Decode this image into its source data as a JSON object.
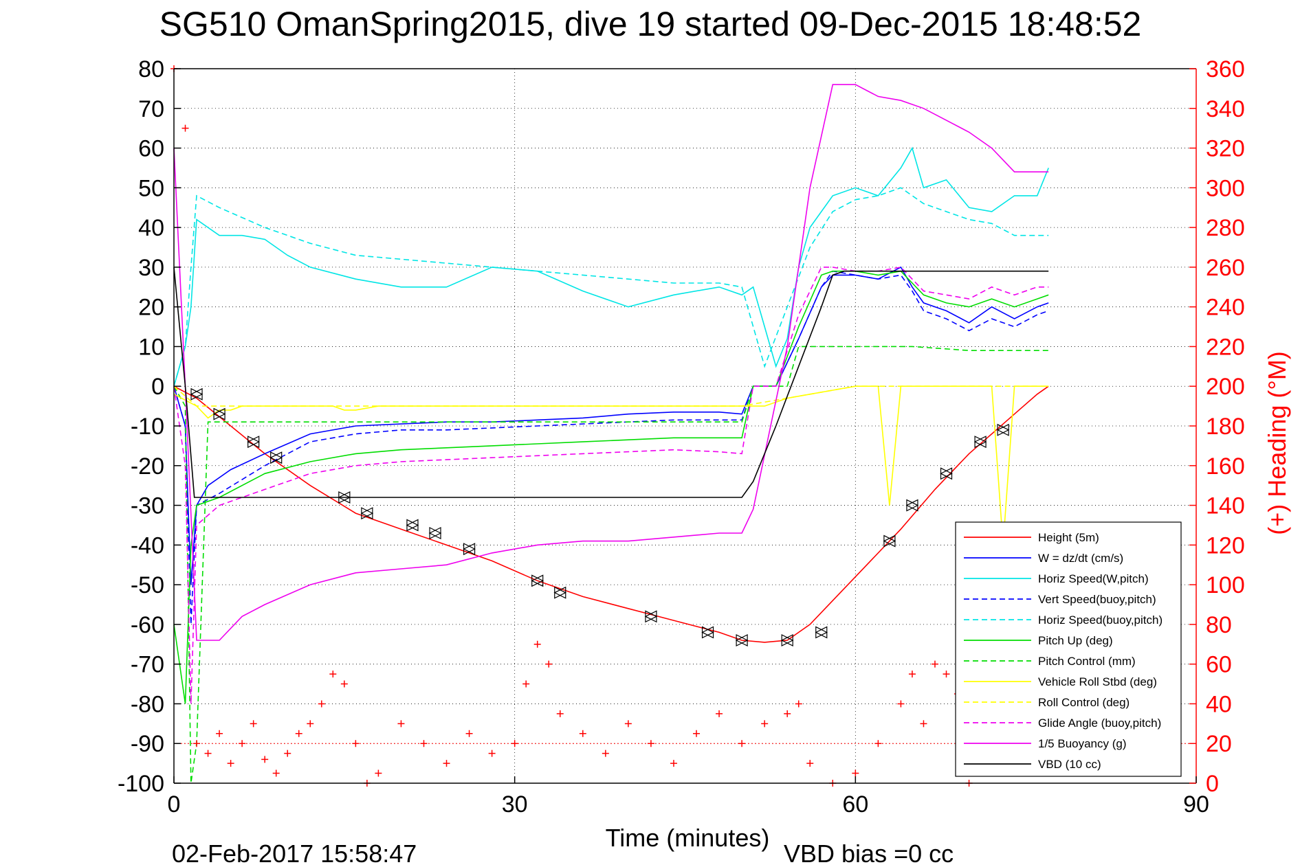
{
  "chart_data": {
    "type": "line",
    "title": "SG510 OmanSpring2015, dive 19 started 09-Dec-2015 18:48:52",
    "xlabel": "Time (minutes)",
    "ylabel": "",
    "y2label": "(+) Heading (°M)",
    "xlim": [
      0,
      90
    ],
    "ylim": [
      -100,
      80
    ],
    "y2lim": [
      0,
      360
    ],
    "xticks": [
      "0",
      "30",
      "60",
      "90"
    ],
    "yticks": [
      "80",
      "70",
      "60",
      "50",
      "40",
      "30",
      "20",
      "10",
      "0",
      "-10",
      "-20",
      "-30",
      "-40",
      "-50",
      "-60",
      "-70",
      "-80",
      "-90",
      "-100"
    ],
    "y2ticks": [
      "360",
      "340",
      "320",
      "300",
      "280",
      "260",
      "240",
      "220",
      "200",
      "180",
      "160",
      "140",
      "120",
      "100",
      "80",
      "60",
      "40",
      "20",
      "0"
    ],
    "grid": true,
    "legend_position": "bottom-right",
    "footer_date": "02-Feb-2017 15:58:47",
    "footer_bias": "VBD bias =0 cc",
    "series": [
      {
        "name": "Height (5m)",
        "color": "#ff0000",
        "style": "solid",
        "x": [
          0,
          2,
          5,
          8,
          12,
          16,
          20,
          24,
          28,
          32,
          36,
          40,
          44,
          48,
          50,
          52,
          54,
          56,
          58,
          61,
          64,
          67,
          70,
          72,
          74,
          76,
          77
        ],
        "y": [
          0,
          -3,
          -10,
          -17,
          -25,
          -32,
          -36,
          -40,
          -44,
          -49,
          -53,
          -56,
          -59,
          -62,
          -64,
          -64.5,
          -64,
          -60,
          -54,
          -45,
          -36,
          -26,
          -17,
          -12,
          -7,
          -2,
          0
        ]
      },
      {
        "name": "W = dz/dt (cm/s)",
        "color": "#0000ff",
        "style": "solid",
        "x": [
          0,
          1,
          1.5,
          2,
          3,
          5,
          8,
          12,
          16,
          20,
          24,
          28,
          32,
          36,
          40,
          44,
          48,
          50,
          51,
          53,
          55,
          57,
          58,
          60,
          62,
          64,
          65,
          66,
          68,
          70,
          72,
          74,
          76,
          77
        ],
        "y": [
          0,
          -10,
          -50,
          -30,
          -25,
          -21,
          -17,
          -12,
          -10,
          -9.5,
          -9,
          -9,
          -8.5,
          -8,
          -7,
          -6.5,
          -6.5,
          -7,
          0,
          0,
          12,
          25,
          28,
          28,
          27,
          30,
          25,
          21,
          19,
          16,
          20,
          17,
          20,
          21
        ]
      },
      {
        "name": "Horiz Speed(W,pitch)",
        "color": "#00e5e5",
        "style": "solid",
        "x": [
          0,
          1,
          1.5,
          2,
          4,
          6,
          8,
          10,
          12,
          16,
          20,
          24,
          28,
          32,
          36,
          40,
          44,
          48,
          50,
          51,
          52,
          53,
          54,
          55,
          56,
          58,
          60,
          62,
          64,
          65,
          66,
          68,
          70,
          72,
          74,
          76,
          77
        ],
        "y": [
          0,
          10,
          20,
          42,
          38,
          38,
          37,
          33,
          30,
          27,
          25,
          25,
          30,
          29,
          24,
          20,
          23,
          25,
          23,
          25,
          15,
          5,
          12,
          30,
          40,
          48,
          50,
          48,
          55,
          60,
          50,
          52,
          45,
          44,
          48,
          48,
          55
        ]
      },
      {
        "name": "Vert Speed(buoy,pitch)",
        "color": "#0000ff",
        "style": "dashed",
        "x": [
          0,
          1,
          1.5,
          2,
          4,
          8,
          12,
          16,
          20,
          24,
          28,
          32,
          36,
          40,
          44,
          48,
          50,
          51,
          53,
          55,
          57,
          58,
          60,
          62,
          64,
          65,
          66,
          68,
          70,
          72,
          74,
          76,
          77
        ],
        "y": [
          0,
          -10,
          -60,
          -30,
          -27,
          -20,
          -14,
          -12,
          -11,
          -11,
          -10.5,
          -10,
          -9.5,
          -9,
          -8.5,
          -8.5,
          -8.5,
          0,
          0,
          12,
          25,
          29,
          28,
          27,
          28,
          24,
          19,
          17,
          14,
          17,
          15,
          18,
          19
        ]
      },
      {
        "name": "Horiz Speed(buoy,pitch)",
        "color": "#00e5e5",
        "style": "dashed",
        "x": [
          0,
          1,
          1.5,
          2,
          4,
          8,
          12,
          16,
          20,
          24,
          28,
          32,
          36,
          40,
          44,
          48,
          50,
          52,
          54,
          56,
          58,
          60,
          62,
          64,
          66,
          68,
          70,
          72,
          74,
          76,
          77
        ],
        "y": [
          0,
          10,
          30,
          48,
          45,
          40,
          36,
          33,
          32,
          31,
          30,
          29,
          28,
          27,
          26,
          26,
          25,
          5,
          20,
          35,
          44,
          47,
          48,
          50,
          46,
          44,
          42,
          41,
          38,
          38,
          38
        ]
      },
      {
        "name": "Pitch Up (deg)",
        "color": "#00dd00",
        "style": "solid",
        "x": [
          0,
          1,
          1.5,
          2,
          4,
          8,
          12,
          16,
          20,
          24,
          28,
          32,
          36,
          40,
          44,
          48,
          50,
          51,
          53,
          55,
          57,
          58,
          60,
          62,
          64,
          65,
          66,
          68,
          70,
          72,
          74,
          76,
          77
        ],
        "y": [
          -60,
          -80,
          -40,
          -30,
          -28,
          -22,
          -19,
          -17,
          -16,
          -15.5,
          -15,
          -14.5,
          -14,
          -13.5,
          -13,
          -13,
          -13,
          0,
          0,
          15,
          28,
          29,
          29,
          28,
          29,
          26,
          23,
          21,
          20,
          22,
          20,
          22,
          23
        ]
      },
      {
        "name": "Pitch Control (mm)",
        "color": "#00dd00",
        "style": "dashed",
        "x": [
          0,
          1,
          1.5,
          2,
          3,
          10,
          20,
          30,
          40,
          50,
          51,
          53,
          54,
          55,
          60,
          65,
          70,
          77
        ],
        "y": [
          0,
          -5,
          -100,
          -90,
          -9,
          -9,
          -9,
          -9,
          -9,
          -9,
          0,
          0,
          0,
          10,
          10,
          10,
          9,
          9
        ]
      },
      {
        "name": "Vehicle Roll Stbd (deg)",
        "color": "#ffff00",
        "style": "solid",
        "x": [
          0,
          2,
          3,
          4,
          5,
          6,
          7,
          8,
          10,
          12,
          14,
          15,
          16,
          18,
          20,
          22,
          24,
          26,
          28,
          30,
          32,
          34,
          36,
          38,
          40,
          42,
          44,
          46,
          48,
          50,
          52,
          54,
          56,
          58,
          60,
          62,
          63,
          64,
          66,
          68,
          70,
          72,
          73,
          74,
          76,
          77
        ],
        "y": [
          -2,
          -5,
          -8,
          -6,
          -6,
          -5,
          -5,
          -5,
          -5,
          -5,
          -5,
          -6,
          -6,
          -5,
          -5,
          -5,
          -5,
          -5,
          -5,
          -5,
          -5,
          -5,
          -5,
          -5,
          -5,
          -5,
          -5,
          -5,
          -5,
          -5,
          -5,
          -3,
          -2,
          -1,
          0,
          0,
          -30,
          0,
          0,
          0,
          0,
          0,
          -40,
          0,
          0,
          0
        ]
      },
      {
        "name": "Roll Control (deg)",
        "color": "#ffff00",
        "style": "dashed",
        "x": [
          0,
          2,
          4,
          6,
          8,
          12,
          16,
          18,
          20,
          24,
          28,
          32,
          36,
          40,
          44,
          48,
          50,
          60,
          66,
          68,
          70,
          72,
          74,
          76,
          77
        ],
        "y": [
          0,
          -5,
          -5,
          -5,
          -5,
          -5,
          -5,
          -5,
          -5,
          -5,
          -5,
          -5,
          -5,
          -5,
          -5,
          -5,
          -5,
          0,
          0,
          0,
          0,
          0,
          0,
          0,
          0
        ]
      },
      {
        "name": "Glide Angle (buoy,pitch)",
        "color": "#ee00ee",
        "style": "dashed",
        "x": [
          0,
          1,
          1.5,
          2,
          4,
          8,
          12,
          16,
          20,
          24,
          28,
          32,
          36,
          40,
          44,
          48,
          50,
          51,
          53,
          55,
          57,
          58,
          60,
          62,
          64,
          65,
          66,
          68,
          70,
          72,
          74,
          76,
          77
        ],
        "y": [
          0,
          -20,
          -80,
          -35,
          -30,
          -26,
          -22,
          -20,
          -19,
          -18.5,
          -18,
          -17.5,
          -17,
          -16.5,
          -16,
          -16.5,
          -17,
          0,
          0,
          18,
          30,
          30,
          29,
          29,
          30,
          27,
          24,
          23,
          22,
          25,
          23,
          25,
          25
        ]
      },
      {
        "name": "1/5 Buoyancy (g)",
        "color": "#ee00ee",
        "style": "solid",
        "x": [
          0,
          1,
          2,
          4,
          6,
          8,
          12,
          16,
          20,
          24,
          28,
          32,
          36,
          40,
          44,
          48,
          50,
          51,
          54,
          56,
          58,
          60,
          62,
          64,
          66,
          68,
          70,
          72,
          74,
          77
        ],
        "y": [
          60,
          0,
          -64,
          -64,
          -58,
          -55,
          -50,
          -47,
          -46,
          -45,
          -42,
          -40,
          -39,
          -39,
          -38,
          -37,
          -37,
          -31,
          10,
          50,
          76,
          76,
          73,
          72,
          70,
          67,
          64,
          60,
          54,
          54
        ]
      },
      {
        "name": "VBD (10 cc)",
        "color": "#000000",
        "style": "solid",
        "x": [
          0,
          1,
          1.8,
          2,
          10,
          20,
          30,
          40,
          48,
          50,
          51,
          53,
          55,
          57,
          58,
          59,
          60,
          77
        ],
        "y": [
          30,
          0,
          -28,
          -28,
          -28,
          -28,
          -28,
          -28,
          -28,
          -28,
          -24,
          -10,
          5,
          20,
          28,
          29,
          29,
          29
        ]
      }
    ],
    "heading": {
      "label": "(+) Heading (°M)",
      "color": "#ff0000",
      "reference_line": 20,
      "x": [
        0,
        1,
        2,
        3,
        4,
        5,
        6,
        7,
        8,
        9,
        10,
        11,
        12,
        13,
        14,
        15,
        16,
        17,
        18,
        20,
        22,
        24,
        26,
        28,
        30,
        31,
        32,
        33,
        34,
        36,
        38,
        40,
        42,
        44,
        46,
        48,
        50,
        52,
        54,
        55,
        56,
        58,
        60,
        62,
        64,
        65,
        66,
        67,
        68,
        69,
        70,
        72,
        74,
        76
      ],
      "y": [
        360,
        330,
        20,
        15,
        25,
        10,
        20,
        30,
        12,
        5,
        15,
        25,
        30,
        40,
        55,
        50,
        20,
        0,
        5,
        30,
        20,
        10,
        25,
        15,
        20,
        50,
        70,
        60,
        35,
        25,
        15,
        30,
        20,
        10,
        25,
        35,
        20,
        30,
        35,
        40,
        10,
        0,
        5,
        20,
        40,
        55,
        30,
        60,
        55,
        45,
        0,
        10,
        5,
        15
      ]
    },
    "markers": {
      "description": "triangle markers on height curve",
      "x": [
        2,
        4,
        7,
        9,
        15,
        17,
        21,
        23,
        26,
        32,
        34,
        42,
        47,
        50,
        54,
        57,
        63,
        65,
        68,
        71,
        73
      ],
      "y": [
        -2,
        -7,
        -14,
        -18,
        -28,
        -32,
        -35,
        -37,
        -41,
        -49,
        -52,
        -58,
        -62,
        -64,
        -64,
        -62,
        -39,
        -30,
        -22,
        -14,
        -11
      ]
    },
    "legend": [
      {
        "label": "Height (5m)",
        "color": "#ff0000",
        "style": "solid"
      },
      {
        "label": "W = dz/dt (cm/s)",
        "color": "#0000ff",
        "style": "solid"
      },
      {
        "label": "Horiz Speed(W,pitch)",
        "color": "#00e5e5",
        "style": "solid"
      },
      {
        "label": "Vert Speed(buoy,pitch)",
        "color": "#0000ff",
        "style": "dashed"
      },
      {
        "label": "Horiz Speed(buoy,pitch)",
        "color": "#00e5e5",
        "style": "dashed"
      },
      {
        "label": "Pitch Up (deg)",
        "color": "#00dd00",
        "style": "solid"
      },
      {
        "label": "Pitch Control (mm)",
        "color": "#00dd00",
        "style": "dashed"
      },
      {
        "label": "Vehicle Roll Stbd (deg)",
        "color": "#ffff00",
        "style": "solid"
      },
      {
        "label": "Roll Control (deg)",
        "color": "#ffff00",
        "style": "dashed"
      },
      {
        "label": "Glide Angle (buoy,pitch)",
        "color": "#ee00ee",
        "style": "dashed"
      },
      {
        "label": "1/5 Buoyancy (g)",
        "color": "#ee00ee",
        "style": "solid"
      },
      {
        "label": "VBD (10 cc)",
        "color": "#000000",
        "style": "solid"
      }
    ]
  }
}
